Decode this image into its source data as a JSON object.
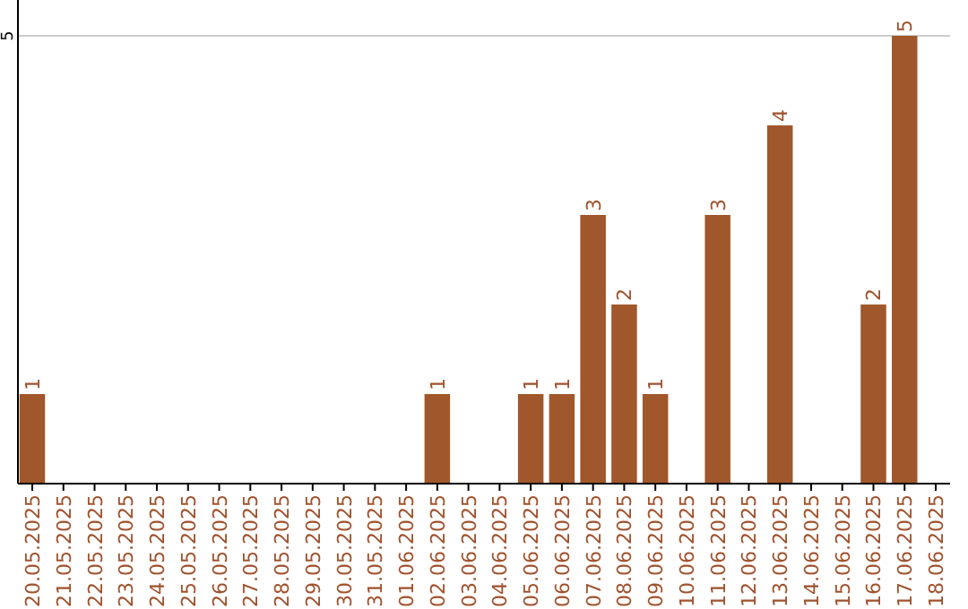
{
  "chart_data": {
    "type": "bar",
    "categories": [
      "20.05.2025",
      "21.05.2025",
      "22.05.2025",
      "23.05.2025",
      "24.05.2025",
      "25.05.2025",
      "26.05.2025",
      "27.05.2025",
      "28.05.2025",
      "29.05.2025",
      "30.05.2025",
      "31.05.2025",
      "01.06.2025",
      "02.06.2025",
      "03.06.2025",
      "04.06.2025",
      "05.06.2025",
      "06.06.2025",
      "07.06.2025",
      "08.06.2025",
      "09.06.2025",
      "10.06.2025",
      "11.06.2025",
      "12.06.2025",
      "13.06.2025",
      "14.06.2025",
      "15.06.2025",
      "16.06.2025",
      "17.06.2025",
      "18.06.2025"
    ],
    "values": [
      1,
      0,
      0,
      0,
      0,
      0,
      0,
      0,
      0,
      0,
      0,
      0,
      0,
      1,
      0,
      0,
      1,
      1,
      3,
      2,
      1,
      0,
      3,
      0,
      4,
      0,
      0,
      2,
      5,
      0
    ],
    "value_labels": [
      "1",
      null,
      null,
      null,
      null,
      null,
      null,
      null,
      null,
      null,
      null,
      null,
      null,
      "1",
      null,
      null,
      "1",
      "1",
      "3",
      "2",
      "1",
      null,
      "3",
      null,
      "4",
      null,
      null,
      "2",
      "5",
      null
    ],
    "color": "#a0572b",
    "ylim": [
      0,
      5.4
    ],
    "yticks": [
      5
    ],
    "grid": "y"
  }
}
